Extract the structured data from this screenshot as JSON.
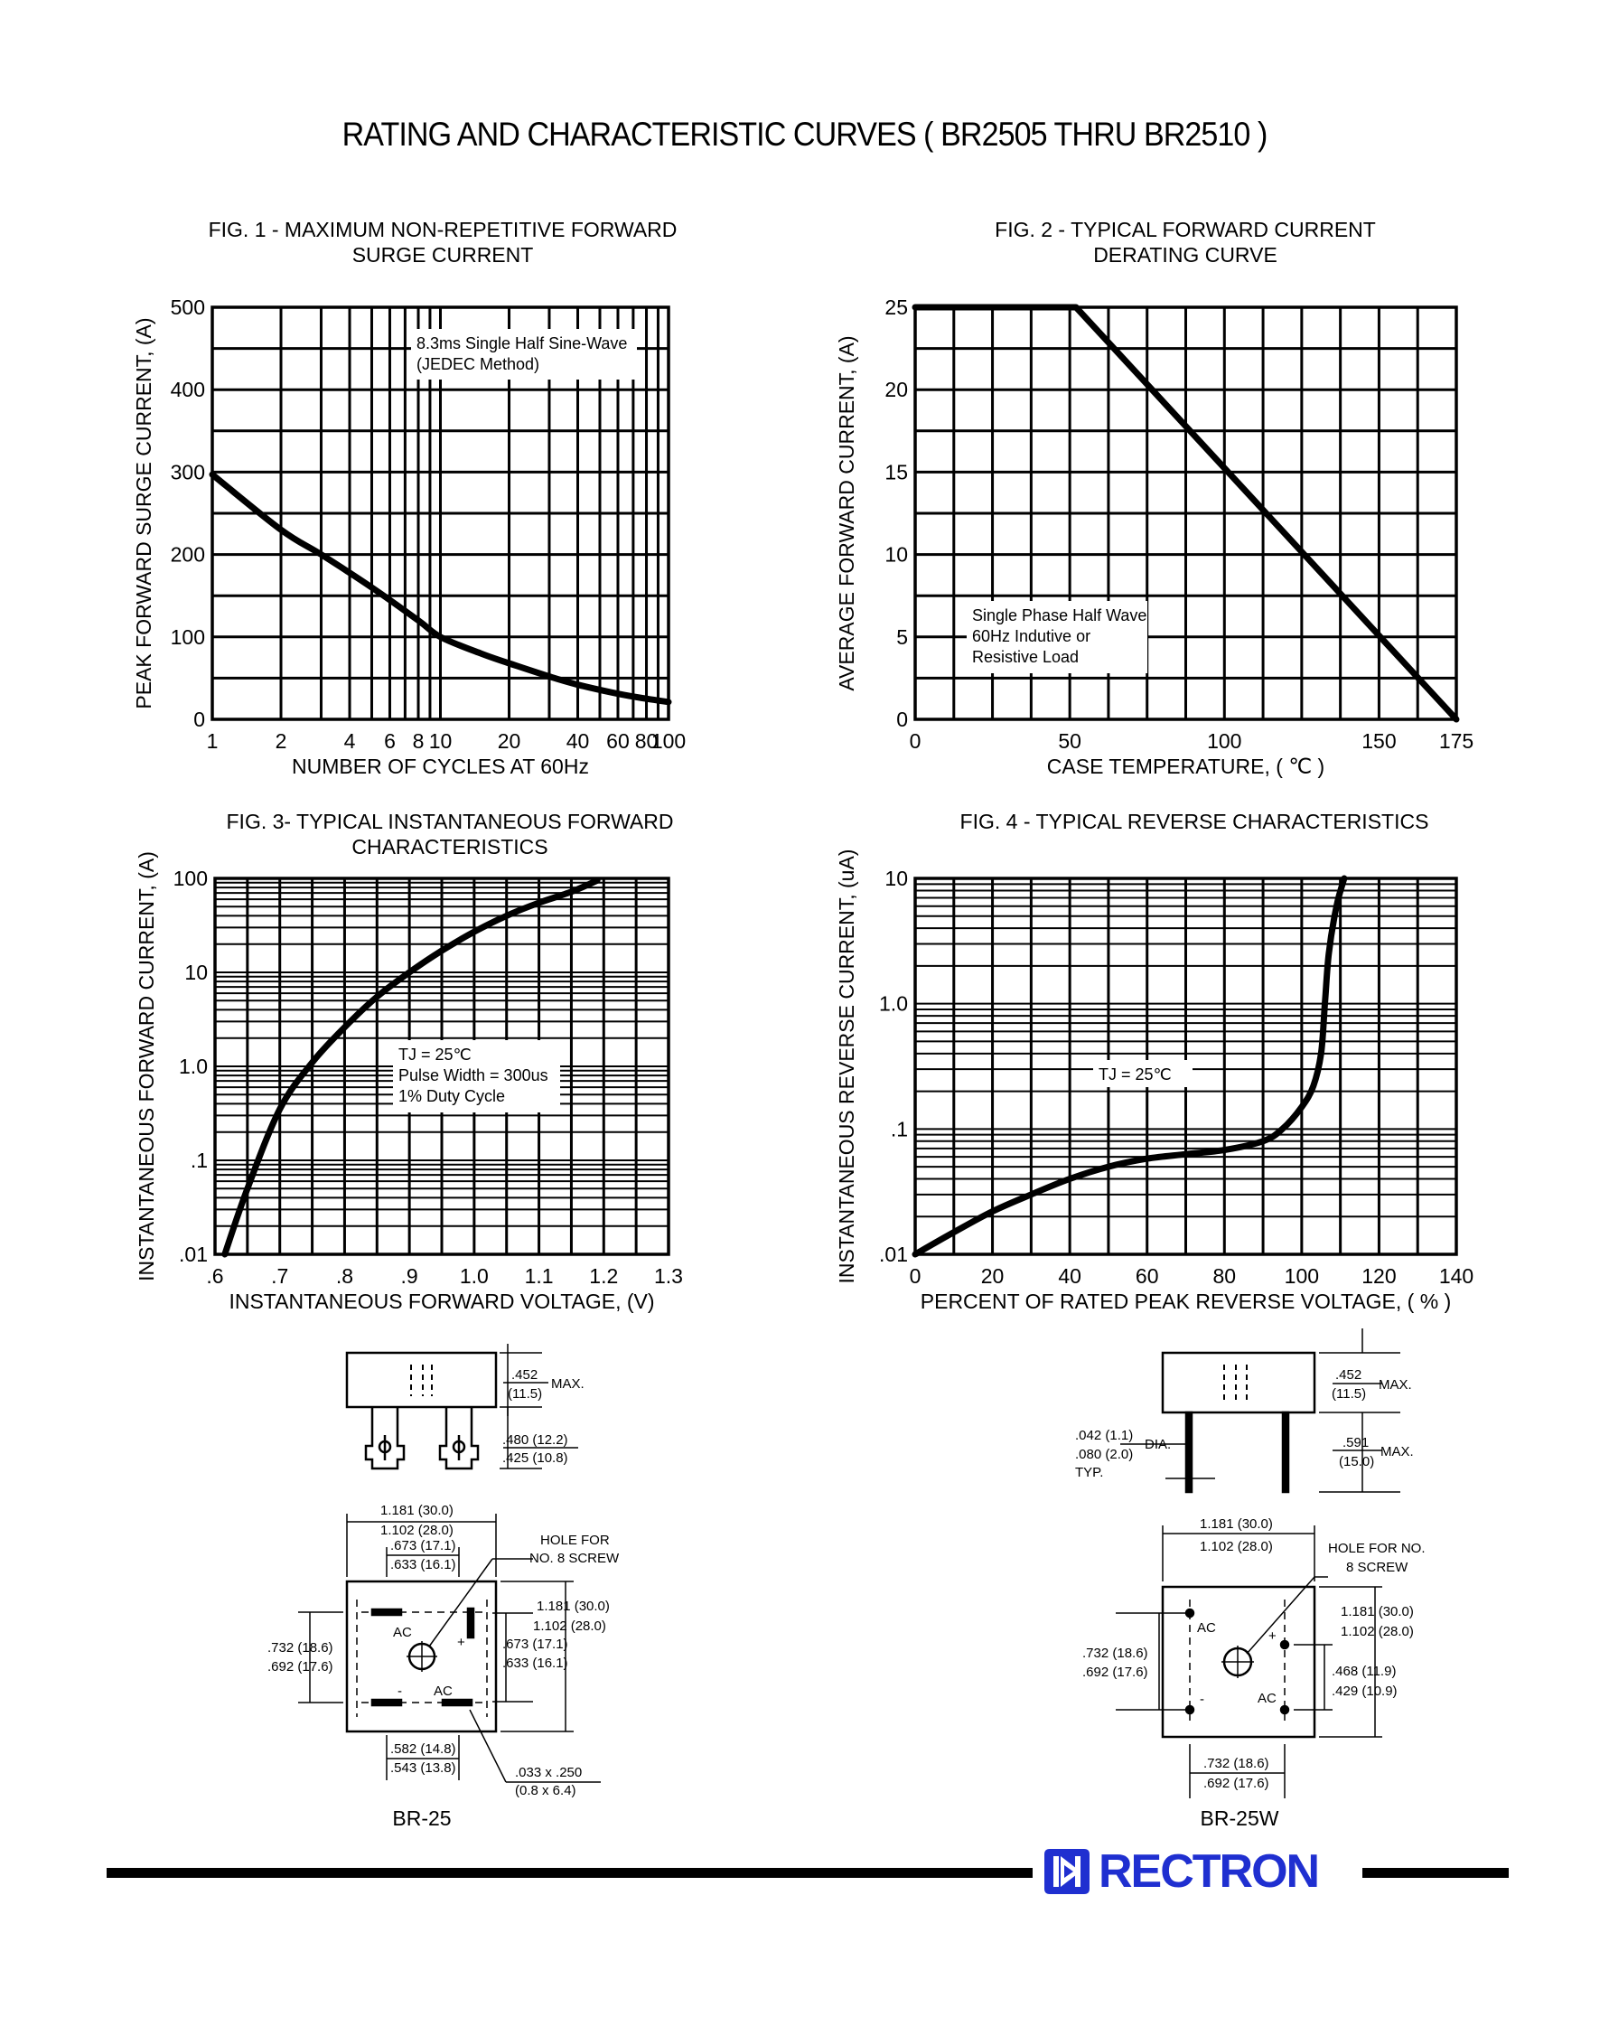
{
  "page": {
    "title": "RATING AND CHARACTERISTIC CURVES ( BR2505 THRU BR2510 )",
    "brand": "RECTRON",
    "accent_color": "#1f2fd0"
  },
  "chart_data": [
    {
      "id": "fig1",
      "type": "line",
      "title_lines": [
        "FIG. 1 - MAXIMUM NON-REPETITIVE FORWARD",
        "SURGE CURRENT"
      ],
      "xlabel": "NUMBER OF CYCLES AT 60Hz",
      "ylabel": "PEAK FORWARD SURGE CURRENT, (A)",
      "xscale": "log",
      "xlim": [
        1,
        100
      ],
      "ylim": [
        0,
        500
      ],
      "xticks": [
        1,
        2,
        4,
        6,
        8,
        10,
        20,
        40,
        60,
        80,
        100
      ],
      "xtick_labels": [
        "1",
        "2",
        "4",
        "6",
        "8",
        "10",
        "20",
        "40",
        "60",
        "80",
        "100"
      ],
      "yticks": [
        0,
        100,
        200,
        300,
        400,
        500
      ],
      "ytick_labels": [
        "0",
        "100",
        "200",
        "300",
        "400",
        "500"
      ],
      "grid": true,
      "annotation": [
        "8.3ms Single Half Sine-Wave",
        "(JEDEC Method)"
      ],
      "series": [
        {
          "x": [
            1,
            2,
            3,
            5,
            8,
            10,
            15,
            20,
            30,
            40,
            60,
            80,
            100
          ],
          "y": [
            297,
            230,
            200,
            160,
            120,
            100,
            80,
            68,
            52,
            42,
            31,
            25,
            21
          ]
        }
      ]
    },
    {
      "id": "fig2",
      "type": "line",
      "title_lines": [
        "FIG. 2 - TYPICAL FORWARD CURRENT",
        "DERATING CURVE"
      ],
      "xlabel": "CASE TEMPERATURE, ( ℃ )",
      "ylabel": "AVERAGE FORWARD  CURRENT, (A)",
      "xscale": "linear",
      "xlim": [
        0,
        175
      ],
      "ylim": [
        0,
        25
      ],
      "xticks": [
        0,
        50,
        100,
        150,
        175
      ],
      "xtick_labels": [
        "0",
        "50",
        "100",
        "150",
        "175"
      ],
      "yticks": [
        0,
        5,
        10,
        15,
        20,
        25
      ],
      "ytick_labels": [
        "0",
        "5",
        "10",
        "15",
        "20",
        "25"
      ],
      "grid": true,
      "annotation": [
        "Single Phase Half Wave",
        "60Hz Indutive or",
        "Resistive Load"
      ],
      "series": [
        {
          "x": [
            0,
            52,
            175
          ],
          "y": [
            25,
            25,
            0
          ]
        }
      ]
    },
    {
      "id": "fig3",
      "type": "line",
      "title_lines": [
        "FIG. 3- TYPICAL INSTANTANEOUS FORWARD",
        "CHARACTERISTICS"
      ],
      "xlabel": "INSTANTANEOUS FORWARD VOLTAGE, (V)",
      "ylabel": "INSTANTANEOUS FORWARD CURRENT, (A)",
      "xscale": "linear",
      "yscale": "log",
      "xlim": [
        0.6,
        1.3
      ],
      "ylim": [
        0.01,
        100
      ],
      "xticks": [
        0.6,
        0.7,
        0.8,
        0.9,
        1.0,
        1.1,
        1.2,
        1.3
      ],
      "xtick_labels": [
        ".6",
        ".7",
        ".8",
        ".9",
        "1.0",
        "1.1",
        "1.2",
        "1.3"
      ],
      "yticks": [
        0.01,
        0.1,
        1,
        10,
        100
      ],
      "ytick_labels": [
        ".01",
        ".1",
        "1.0",
        "10",
        "100"
      ],
      "grid": true,
      "annotation": [
        "TJ = 25℃",
        "Pulse Width = 300us",
        "1% Duty Cycle"
      ],
      "series": [
        {
          "x": [
            0.615,
            0.65,
            0.7,
            0.75,
            0.8,
            0.85,
            0.9,
            0.95,
            1.0,
            1.05,
            1.1,
            1.15,
            1.19
          ],
          "y": [
            0.01,
            0.05,
            0.35,
            1.1,
            2.6,
            5.5,
            10,
            17,
            27,
            40,
            55,
            72,
            95
          ]
        }
      ]
    },
    {
      "id": "fig4",
      "type": "line",
      "title_lines": [
        "FIG. 4 - TYPICAL REVERSE CHARACTERISTICS"
      ],
      "xlabel": "PERCENT OF RATED PEAK REVERSE VOLTAGE, ( % )",
      "ylabel": "INSTANTANEOUS REVERSE CURRENT, (uA)",
      "xscale": "linear",
      "yscale": "log",
      "xlim": [
        0,
        140
      ],
      "ylim": [
        0.01,
        10
      ],
      "xticks": [
        0,
        20,
        40,
        60,
        80,
        100,
        120,
        140
      ],
      "xtick_labels": [
        "0",
        "20",
        "40",
        "60",
        "80",
        "100",
        "120",
        "140"
      ],
      "yticks": [
        0.01,
        0.1,
        1,
        10
      ],
      "ytick_labels": [
        ".01",
        ".1",
        "1.0",
        "10"
      ],
      "grid": true,
      "annotation": [
        "TJ = 25℃"
      ],
      "series": [
        {
          "x": [
            0,
            10,
            20,
            30,
            40,
            50,
            60,
            70,
            80,
            90,
            95,
            100,
            103,
            105,
            106,
            107,
            109,
            111
          ],
          "y": [
            0.01,
            0.015,
            0.022,
            0.03,
            0.04,
            0.05,
            0.058,
            0.063,
            0.068,
            0.08,
            0.1,
            0.15,
            0.22,
            0.4,
            1,
            2.5,
            6,
            10
          ]
        }
      ]
    }
  ],
  "packages": {
    "br25": {
      "label": "BR-25",
      "side_dims": {
        "h1_top": ".452",
        "h1_bot": "(11.5)",
        "max": "MAX.",
        "h2_top": ".480 (12.2)",
        "h2_bot": ".425 (10.8)"
      },
      "top_dims": {
        "w1_top": "1.181 (30.0)",
        "w1_bot": "1.102 (28.0)",
        "w2_top": ".673 (17.1)",
        "w2_bot": ".633 (16.1)",
        "hole_1": "HOLE FOR",
        "hole_2": "NO. 8 SCREW",
        "v1_top": "1.181 (30.0)",
        "v1_bot": "1.102 (28.0)",
        "v2_top": ".673 (17.1)",
        "v2_bot": ".633 (16.1)",
        "l_top": ".732 (18.6)",
        "l_bot": ".692 (17.6)",
        "b1_top": ".582 (14.8)",
        "b1_bot": ".543 (13.8)",
        "tab_top": ".033 x .250",
        "tab_bot": "(0.8 x 6.4)",
        "ac": "AC",
        "plus": "+",
        "minus": "-"
      }
    },
    "br25w": {
      "label": "BR-25W",
      "side_dims": {
        "h1_top": ".452",
        "h1_bot": "(11.5)",
        "max1": "MAX.",
        "d_top": ".042 (1.1)",
        "d_bot": ".080 (2.0)",
        "dia": "DIA.",
        "typ": "TYP.",
        "h2_top": ".591",
        "h2_bot": "(15.0)",
        "max2": "MAX."
      },
      "top_dims": {
        "w1_top": "1.181 (30.0)",
        "w1_bot": "1.102 (28.0)",
        "hole_1": "HOLE FOR NO.",
        "hole_2": "8 SCREW",
        "v1_top": "1.181 (30.0)",
        "v1_bot": "1.102 (28.0)",
        "v2_top": ".468 (11.9)",
        "v2_bot": ".429 (10.9)",
        "l_top": ".732 (18.6)",
        "l_bot": ".692 (17.6)",
        "b1_top": ".732 (18.6)",
        "b1_bot": ".692 (17.6)",
        "ac": "AC",
        "plus": "+",
        "minus": "-"
      }
    }
  }
}
